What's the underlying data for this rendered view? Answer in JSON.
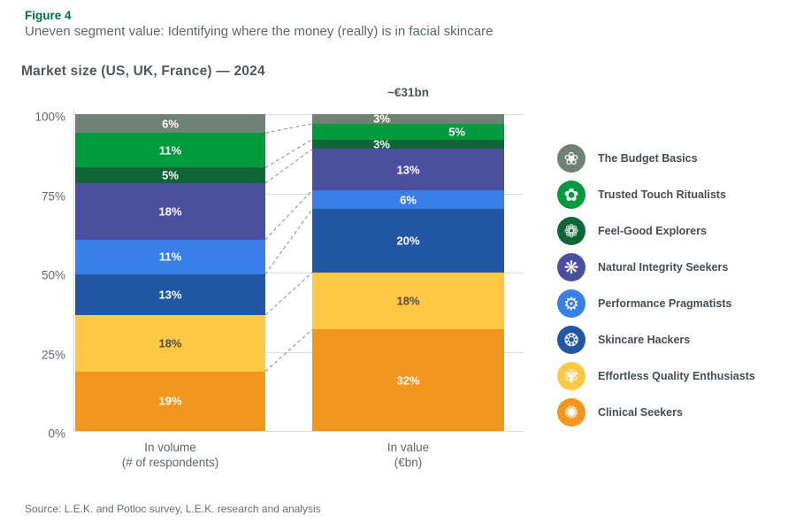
{
  "figure": {
    "label": "Figure 4",
    "subtitle": "Uneven segment value: Identifying where the money (really) is in facial skincare",
    "source": "Source: L.E.K. and Potloc survey, L.E.K. research and analysis"
  },
  "chart_data": {
    "type": "bar",
    "subtype": "100%-stacked-vertical",
    "title": "Market size (US, UK, France) — 2024",
    "annotation": "~€31bn",
    "annotation_over": "In value",
    "y_ticks": [
      "100%",
      "75%",
      "50%",
      "25%",
      "0%"
    ],
    "ylim": [
      0,
      100
    ],
    "grid": true,
    "legend_position": "right",
    "value_unit": "%",
    "segments": [
      {
        "name": "The Budget Basics",
        "color": "#708276",
        "label_color": "#ffffff",
        "glyph": "❀",
        "icon_name": "budget-basics-flower-icon"
      },
      {
        "name": "Trusted Touch Ritualists",
        "color": "#009A3E",
        "label_color": "#ffffff",
        "glyph": "✿",
        "icon_name": "trusted-touch-flower-icon"
      },
      {
        "name": "Feel-Good Explorers",
        "color": "#0F6535",
        "label_color": "#ffffff",
        "glyph": "❁",
        "icon_name": "feel-good-flower-icon"
      },
      {
        "name": "Natural Integrity Seekers",
        "color": "#4B4F9D",
        "label_color": "#ffffff",
        "glyph": "❋",
        "icon_name": "natural-integrity-flower-icon"
      },
      {
        "name": "Performance Pragmatists",
        "color": "#3880E8",
        "label_color": "#ffffff",
        "glyph": "⚙",
        "icon_name": "performance-gear-icon"
      },
      {
        "name": "Skincare Hackers",
        "color": "#2157A4",
        "label_color": "#ffffff",
        "glyph": "❂",
        "icon_name": "skincare-hackers-gear-icon"
      },
      {
        "name": "Effortless Quality Enthusiasts",
        "color": "#FDC843",
        "label_color": "#4d4d4d",
        "glyph": "✾",
        "icon_name": "effortless-quality-gear-icon"
      },
      {
        "name": "Clinical Seekers",
        "color": "#F2961D",
        "label_color": "#ffffff",
        "glyph": "✺",
        "icon_name": "clinical-seekers-sunburst-icon"
      }
    ],
    "bars": [
      {
        "label_line1": "In volume",
        "label_line2": "(# of respondents)",
        "values": [
          6,
          11,
          5,
          18,
          11,
          13,
          18,
          19
        ],
        "label_dx": [
          0,
          0,
          0,
          0,
          0,
          0,
          0,
          0
        ]
      },
      {
        "label_line1": "In value",
        "label_line2": "(€bn)",
        "values": [
          3,
          5,
          3,
          13,
          6,
          20,
          18,
          32
        ],
        "label_dx": [
          -30,
          55,
          -30,
          0,
          0,
          0,
          0,
          0
        ]
      }
    ]
  }
}
